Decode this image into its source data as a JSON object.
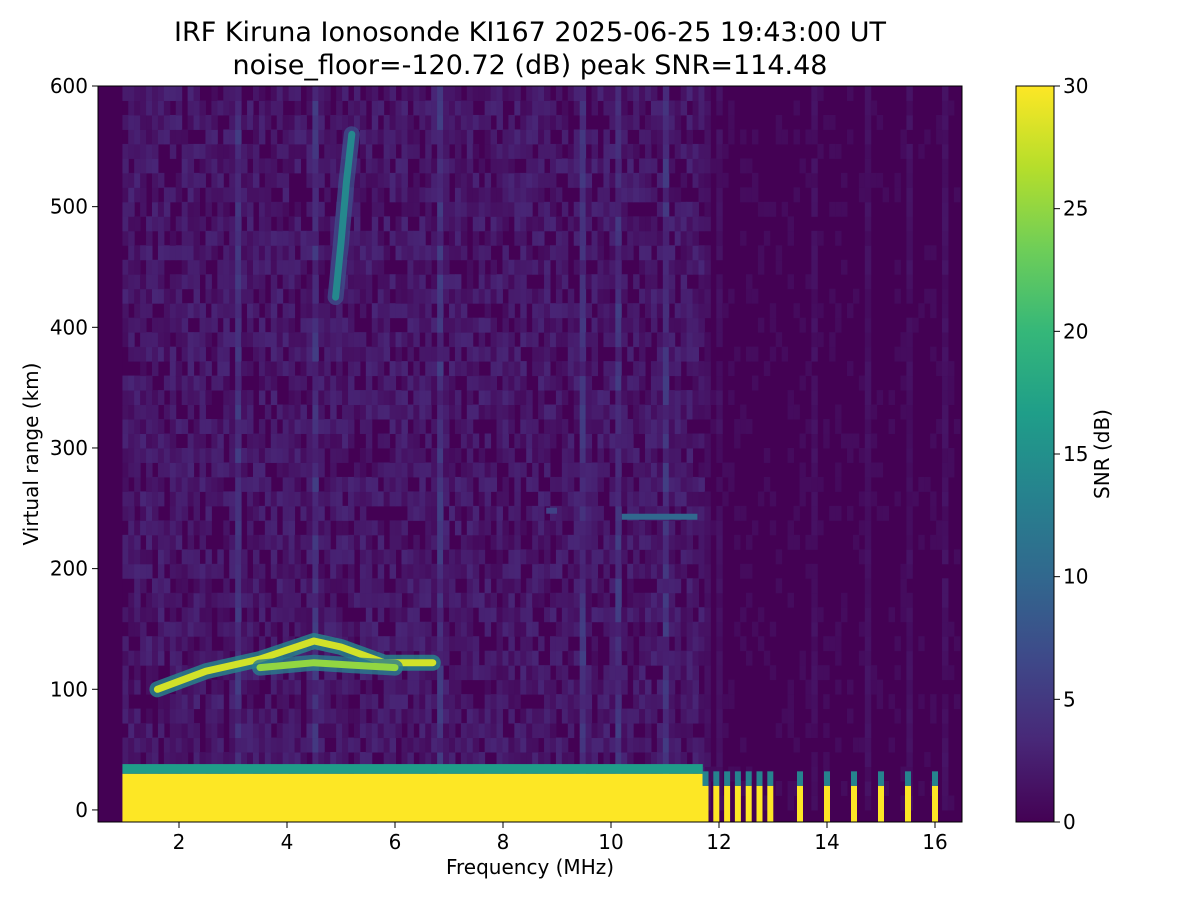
{
  "chart_data": {
    "type": "heatmap",
    "title_lines": [
      "IRF Kiruna Ionosonde KI167 2025-06-25 19:43:00  UT",
      "noise_floor=-120.72 (dB) peak SNR=114.48"
    ],
    "xlabel": "Frequency (MHz)",
    "ylabel": "Virtual range (km)",
    "xlim": [
      0.5,
      16.5
    ],
    "ylim": [
      -10,
      600
    ],
    "xticks": [
      2,
      4,
      6,
      8,
      10,
      12,
      14,
      16
    ],
    "yticks": [
      0,
      100,
      200,
      300,
      400,
      500,
      600
    ],
    "colorbar": {
      "label": "SNR (dB)",
      "range": [
        0,
        30
      ],
      "ticks": [
        0,
        5,
        10,
        15,
        20,
        25,
        30
      ],
      "colormap": [
        "#440154",
        "#482878",
        "#3e4989",
        "#31688e",
        "#26828e",
        "#1f9e89",
        "#35b779",
        "#6ece58",
        "#b5de2b",
        "#fde725"
      ]
    },
    "noise_floor_db": -120.72,
    "peak_snr_db": 114.48,
    "swept_frequency_range_mhz": [
      0.95,
      16.35
    ],
    "features": [
      {
        "name": "ground clutter / direct wave",
        "freq_mhz": [
          0.95,
          11.7
        ],
        "range_km": [
          -10,
          30
        ],
        "snr_db": 30
      },
      {
        "name": "discrete channels above 11.7 MHz",
        "freqs_mhz": [
          11.75,
          11.95,
          12.15,
          12.35,
          12.55,
          12.75,
          12.95,
          13.5,
          14.0,
          14.5,
          15.0,
          15.5,
          16.0
        ],
        "range_km": [
          -10,
          20
        ],
        "snr_db": 30
      },
      {
        "name": "E-layer trace",
        "points": [
          [
            1.6,
            100
          ],
          [
            2.5,
            115
          ],
          [
            3.5,
            125
          ],
          [
            4.5,
            140
          ],
          [
            5.0,
            135
          ],
          [
            5.8,
            122
          ],
          [
            6.7,
            122
          ]
        ],
        "snr_db": 28
      },
      {
        "name": "E-layer trace (lower branch)",
        "points": [
          [
            3.5,
            118
          ],
          [
            4.5,
            122
          ],
          [
            5.2,
            120
          ],
          [
            6.0,
            118
          ]
        ],
        "snr_db": 25
      },
      {
        "name": "multi-hop echo",
        "points": [
          [
            4.9,
            425
          ],
          [
            5.0,
            470
          ],
          [
            5.1,
            520
          ],
          [
            5.2,
            560
          ]
        ],
        "snr_db": 14
      },
      {
        "name": "F-region echo",
        "freq_mhz": [
          10.2,
          11.6
        ],
        "range_km": 243,
        "snr_db": 10
      },
      {
        "name": "F-region echo (weak)",
        "freq_mhz": [
          8.8,
          9.0
        ],
        "range_km": 248,
        "snr_db": 6
      }
    ]
  }
}
